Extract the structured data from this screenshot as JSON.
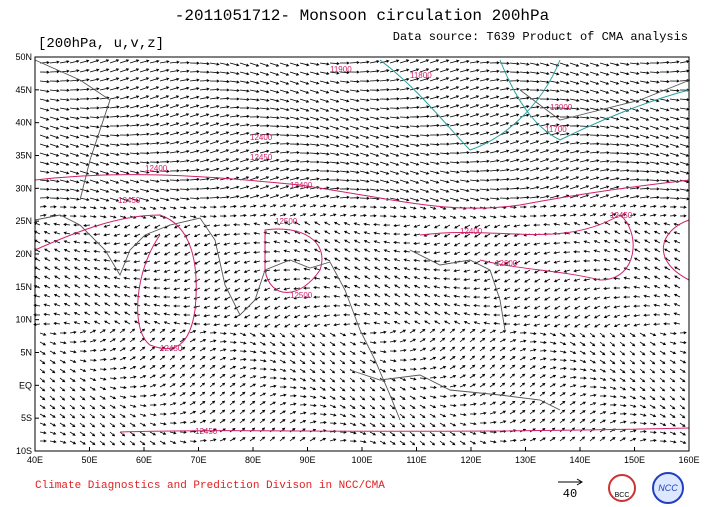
{
  "header": {
    "title": "-2011051712- Monsoon circulation 200hPa",
    "level_label": "[200hPa, u,v,z]",
    "source": "Data source: T639 Product of CMA analysis"
  },
  "map": {
    "lat_labels": [
      "50N",
      "45N",
      "40N",
      "35N",
      "30N",
      "25N",
      "20N",
      "15N",
      "10N",
      "5N",
      "EQ",
      "5S",
      "10S"
    ],
    "lon_labels": [
      "40E",
      "50E",
      "60E",
      "70E",
      "80E",
      "90E",
      "100E",
      "110E",
      "120E",
      "130E",
      "140E",
      "150E",
      "160E"
    ],
    "contour_labels": [
      "12400",
      "12400",
      "12450",
      "12500",
      "12500",
      "12450",
      "12450",
      "12400",
      "12600",
      "12450",
      "11800",
      "11900",
      "12000",
      "11700",
      "12400",
      "12450"
    ]
  },
  "footer": {
    "credit": "Climate Diagnostics and Prediction Divison in NCC/CMA",
    "reference_vector": "40",
    "logo_left": "BCC",
    "logo_right": "NCC"
  }
}
